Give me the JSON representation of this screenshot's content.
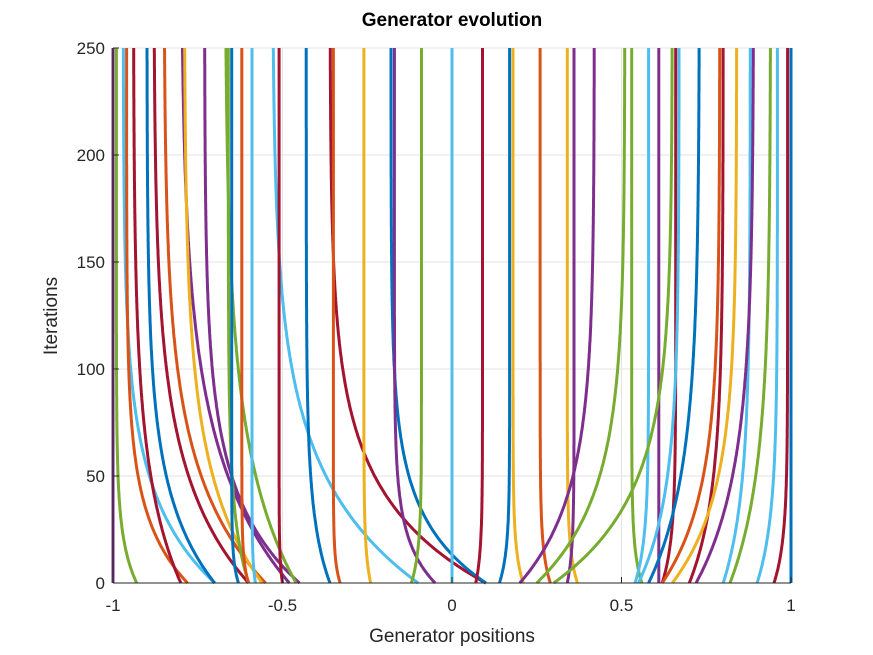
{
  "chart_data": {
    "type": "line",
    "title": "Generator evolution",
    "xlabel": "Generator positions",
    "ylabel": "Iterations",
    "xlim": [
      -1,
      1
    ],
    "ylim": [
      0,
      250
    ],
    "xticks": [
      "-1",
      "-0.5",
      "0",
      "0.5",
      "1"
    ],
    "yticks": [
      "0",
      "50",
      "100",
      "150",
      "200",
      "250"
    ],
    "grid": true,
    "palette": [
      "#0072BD",
      "#D95319",
      "#EDB120",
      "#7E2F8E",
      "#77AC30",
      "#4DBEEE",
      "#A2142F"
    ],
    "series_model": "x(iter) = final + (initial - final) * exp(-iter / tau)",
    "series": [
      {
        "final": -1.0,
        "initial": -1.0,
        "tau": 10,
        "color": 3
      },
      {
        "final": -0.99,
        "initial": -0.93,
        "tau": 20,
        "color": 4
      },
      {
        "final": -0.97,
        "initial": -0.7,
        "tau": 40,
        "color": 5
      },
      {
        "final": -0.96,
        "initial": -0.78,
        "tau": 30,
        "color": 1
      },
      {
        "final": -0.94,
        "initial": -0.8,
        "tau": 50,
        "color": 6
      },
      {
        "final": -0.9,
        "initial": -0.7,
        "tau": 40,
        "color": 0
      },
      {
        "final": -0.88,
        "initial": -0.6,
        "tau": 50,
        "color": 6
      },
      {
        "final": -0.85,
        "initial": -0.55,
        "tau": 50,
        "color": 1
      },
      {
        "final": -0.8,
        "initial": -0.48,
        "tau": 60,
        "color": 3
      },
      {
        "final": -0.79,
        "initial": -0.56,
        "tau": 50,
        "color": 2
      },
      {
        "final": -0.73,
        "initial": -0.45,
        "tau": 40,
        "color": 3
      },
      {
        "final": -0.67,
        "initial": -0.46,
        "tau": 60,
        "color": 4
      },
      {
        "final": -0.66,
        "initial": -0.6,
        "tau": 30,
        "color": 4
      },
      {
        "final": -0.65,
        "initial": -0.63,
        "tau": 10,
        "color": 0
      },
      {
        "final": -0.62,
        "initial": -0.6,
        "tau": 10,
        "color": 1
      },
      {
        "final": -0.59,
        "initial": -0.58,
        "tau": 10,
        "color": 5
      },
      {
        "final": -0.53,
        "initial": -0.1,
        "tau": 50,
        "color": 5
      },
      {
        "final": -0.51,
        "initial": -0.5,
        "tau": 10,
        "color": 6
      },
      {
        "final": -0.43,
        "initial": -0.36,
        "tau": 30,
        "color": 0
      },
      {
        "final": -0.36,
        "initial": 0.1,
        "tau": 40,
        "color": 6
      },
      {
        "final": -0.35,
        "initial": -0.33,
        "tau": 10,
        "color": 1
      },
      {
        "final": -0.26,
        "initial": -0.24,
        "tau": 15,
        "color": 2
      },
      {
        "final": -0.18,
        "initial": 0.1,
        "tau": 30,
        "color": 0
      },
      {
        "final": -0.17,
        "initial": -0.05,
        "tau": 20,
        "color": 3
      },
      {
        "final": -0.09,
        "initial": -0.12,
        "tau": 15,
        "color": 4
      },
      {
        "final": 0.0,
        "initial": 0.0,
        "tau": 10,
        "color": 5
      },
      {
        "final": 0.09,
        "initial": 0.07,
        "tau": 15,
        "color": 6
      },
      {
        "final": 0.17,
        "initial": 0.14,
        "tau": 15,
        "color": 0
      },
      {
        "final": 0.18,
        "initial": 0.21,
        "tau": 15,
        "color": 2
      },
      {
        "final": 0.26,
        "initial": 0.29,
        "tau": 15,
        "color": 1
      },
      {
        "final": 0.34,
        "initial": 0.37,
        "tau": 15,
        "color": 2
      },
      {
        "final": 0.36,
        "initial": 0.34,
        "tau": 15,
        "color": 3
      },
      {
        "final": 0.42,
        "initial": 0.2,
        "tau": 40,
        "color": 3
      },
      {
        "final": 0.51,
        "initial": 0.25,
        "tau": 40,
        "color": 4
      },
      {
        "final": 0.53,
        "initial": 0.56,
        "tau": 15,
        "color": 4
      },
      {
        "final": 0.58,
        "initial": 0.54,
        "tau": 20,
        "color": 5
      },
      {
        "final": 0.61,
        "initial": 0.61,
        "tau": 10,
        "color": 3
      },
      {
        "final": 0.65,
        "initial": 0.3,
        "tau": 40,
        "color": 4
      },
      {
        "final": 0.66,
        "initial": 0.62,
        "tau": 20,
        "color": 6
      },
      {
        "final": 0.67,
        "initial": 0.55,
        "tau": 40,
        "color": 5
      },
      {
        "final": 0.73,
        "initial": 0.58,
        "tau": 50,
        "color": 0
      },
      {
        "final": 0.79,
        "initial": 0.62,
        "tau": 40,
        "color": 1
      },
      {
        "final": 0.8,
        "initial": 0.7,
        "tau": 40,
        "color": 6
      },
      {
        "final": 0.84,
        "initial": 0.65,
        "tau": 40,
        "color": 2
      },
      {
        "final": 0.88,
        "initial": 0.8,
        "tau": 40,
        "color": 5
      },
      {
        "final": 0.89,
        "initial": 0.72,
        "tau": 50,
        "color": 3
      },
      {
        "final": 0.94,
        "initial": 0.82,
        "tau": 50,
        "color": 4
      },
      {
        "final": 0.96,
        "initial": 0.9,
        "tau": 30,
        "color": 5
      },
      {
        "final": 0.99,
        "initial": 0.95,
        "tau": 20,
        "color": 6
      },
      {
        "final": 1.0,
        "initial": 1.0,
        "tau": 10,
        "color": 0
      }
    ]
  }
}
